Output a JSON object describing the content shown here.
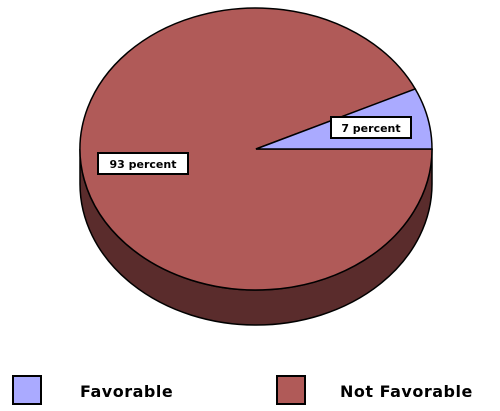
{
  "chart_data": {
    "type": "pie",
    "title": "",
    "style": "3d",
    "slices": [
      {
        "label": "Favorable",
        "value": 7,
        "data_label": "7 percent",
        "color": "#aaaaff",
        "side_color": "#7777cc"
      },
      {
        "label": "Not Favorable",
        "value": 93,
        "data_label": "93 percent",
        "color": "#b05a58",
        "side_color": "#5a2c2c"
      }
    ],
    "legend_position": "bottom"
  },
  "legend": {
    "items": [
      {
        "label": "Favorable",
        "color": "#aaaaff"
      },
      {
        "label": "Not Favorable",
        "color": "#b05a58"
      }
    ]
  }
}
